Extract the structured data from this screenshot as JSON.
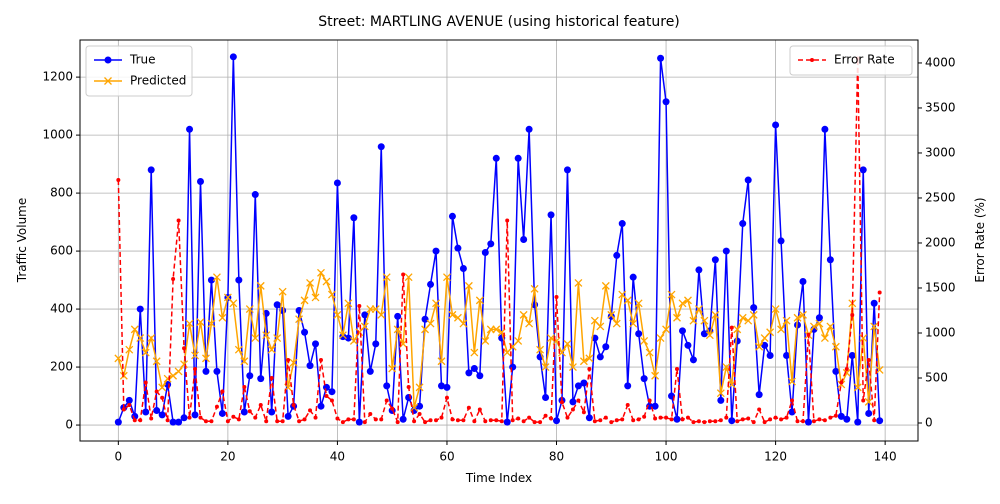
{
  "chart_data": {
    "type": "line",
    "title": "Street: MARTLING AVENUE (using historical feature)",
    "xlabel": "Time Index",
    "ylabel": "Traffic Volume",
    "y2label": "Error Rate (%)",
    "x": [
      0,
      1,
      2,
      3,
      4,
      5,
      6,
      7,
      8,
      9,
      10,
      11,
      12,
      13,
      14,
      15,
      16,
      17,
      18,
      19,
      20,
      21,
      22,
      23,
      24,
      25,
      26,
      27,
      28,
      29,
      30,
      31,
      32,
      33,
      34,
      35,
      36,
      37,
      38,
      39,
      40,
      41,
      42,
      43,
      44,
      45,
      46,
      47,
      48,
      49,
      50,
      51,
      52,
      53,
      54,
      55,
      56,
      57,
      58,
      59,
      60,
      61,
      62,
      63,
      64,
      65,
      66,
      67,
      68,
      69,
      70,
      71,
      72,
      73,
      74,
      75,
      76,
      77,
      78,
      79,
      80,
      81,
      82,
      83,
      84,
      85,
      86,
      87,
      88,
      89,
      90,
      91,
      92,
      93,
      94,
      95,
      96,
      97,
      98,
      99,
      100,
      101,
      102,
      103,
      104,
      105,
      106,
      107,
      108,
      109,
      110,
      111,
      112,
      113,
      114,
      115,
      116,
      117,
      118,
      119,
      120,
      121,
      122,
      123,
      124,
      125,
      126,
      127,
      128,
      129,
      130,
      131,
      132,
      133,
      134,
      135,
      136,
      137,
      138,
      139
    ],
    "series": [
      {
        "name": "True",
        "color": "#0000ff",
        "marker": "o",
        "linestyle": "solid",
        "values": [
          10,
          60,
          85,
          30,
          400,
          45,
          880,
          50,
          35,
          140,
          10,
          10,
          25,
          1020,
          35,
          840,
          185,
          500,
          185,
          40,
          440,
          1270,
          500,
          45,
          170,
          795,
          160,
          385,
          45,
          415,
          395,
          30,
          65,
          395,
          320,
          205,
          280,
          65,
          130,
          115,
          835,
          305,
          300,
          715,
          10,
          380,
          185,
          280,
          960,
          135,
          50,
          375,
          20,
          95,
          50,
          65,
          365,
          485,
          600,
          135,
          130,
          720,
          610,
          540,
          180,
          195,
          170,
          595,
          625,
          920,
          300,
          10,
          200,
          920,
          640,
          1020,
          415,
          235,
          95,
          725,
          15,
          85,
          880,
          80,
          135,
          145,
          25,
          300,
          235,
          270,
          375,
          585,
          695,
          135,
          510,
          315,
          160,
          65,
          65,
          1265,
          1115,
          100,
          20,
          325,
          275,
          225,
          535,
          315,
          325,
          570,
          85,
          600,
          15,
          290,
          695,
          845,
          405,
          105,
          275,
          240,
          1035,
          635,
          240,
          45,
          345,
          495,
          10,
          330,
          370,
          1020,
          570,
          185,
          30,
          20,
          240,
          10,
          880,
          40,
          420,
          15
        ]
      },
      {
        "name": "Predicted",
        "color": "#ffa500",
        "marker": "x",
        "linestyle": "solid",
        "values": [
          230,
          170,
          260,
          330,
          300,
          250,
          300,
          220,
          130,
          160,
          170,
          185,
          210,
          350,
          240,
          355,
          230,
          350,
          510,
          370,
          440,
          420,
          260,
          220,
          400,
          300,
          480,
          310,
          260,
          300,
          460,
          130,
          215,
          365,
          430,
          490,
          440,
          525,
          495,
          450,
          380,
          310,
          420,
          290,
          320,
          340,
          400,
          400,
          380,
          510,
          195,
          330,
          280,
          510,
          60,
          130,
          330,
          350,
          420,
          220,
          510,
          380,
          370,
          350,
          480,
          250,
          430,
          290,
          330,
          330,
          320,
          250,
          270,
          290,
          380,
          350,
          470,
          260,
          200,
          300,
          290,
          250,
          280,
          200,
          490,
          220,
          230,
          360,
          340,
          480,
          380,
          350,
          450,
          430,
          350,
          420,
          290,
          250,
          170,
          300,
          330,
          450,
          370,
          420,
          430,
          360,
          400,
          360,
          310,
          380,
          110,
          200,
          140,
          330,
          370,
          360,
          380,
          270,
          300,
          320,
          400,
          330,
          360,
          150,
          370,
          380,
          310,
          340,
          350,
          300,
          340,
          270,
          140,
          180,
          420,
          130,
          300,
          80,
          340,
          190
        ]
      },
      {
        "name": "Error Rate",
        "color": "#ff0000",
        "marker": ".",
        "linestyle": "dashed",
        "axis": "y2",
        "values": [
          2700,
          150,
          200,
          30,
          30,
          450,
          50,
          350,
          280,
          30,
          1600,
          2250,
          830,
          60,
          600,
          60,
          20,
          20,
          180,
          350,
          20,
          70,
          40,
          400,
          130,
          60,
          200,
          20,
          500,
          20,
          20,
          700,
          200,
          20,
          40,
          140,
          60,
          700,
          300,
          250,
          50,
          10,
          40,
          40,
          1300,
          10,
          100,
          40,
          40,
          250,
          160,
          10,
          1650,
          400,
          20,
          100,
          10,
          30,
          30,
          60,
          280,
          40,
          30,
          30,
          170,
          20,
          150,
          20,
          30,
          30,
          20,
          2250,
          30,
          50,
          20,
          60,
          10,
          10,
          80,
          50,
          1400,
          230,
          60,
          150,
          250,
          120,
          600,
          20,
          30,
          60,
          10,
          30,
          40,
          200,
          30,
          40,
          70,
          250,
          50,
          60,
          60,
          40,
          600,
          40,
          60,
          10,
          20,
          10,
          20,
          20,
          30,
          60,
          1060,
          20,
          40,
          50,
          10,
          150,
          10,
          40,
          60,
          40,
          60,
          250,
          20,
          20,
          980,
          20,
          40,
          30,
          60,
          80,
          450,
          600,
          1200,
          4050,
          250,
          700,
          30,
          1450
        ]
      }
    ],
    "xlim": [
      -7,
      146
    ],
    "xticks": [
      0,
      20,
      40,
      60,
      80,
      100,
      120,
      140
    ],
    "ylim": [
      -55,
      1328
    ],
    "yticks": [
      0,
      200,
      400,
      600,
      800,
      1000,
      1200
    ],
    "y2lim": [
      -200,
      4255
    ],
    "y2ticks": [
      0,
      500,
      1000,
      1500,
      2000,
      2500,
      3000,
      3500,
      4000
    ],
    "grid": true,
    "legend": "upper left",
    "legend_y2": "upper right"
  }
}
